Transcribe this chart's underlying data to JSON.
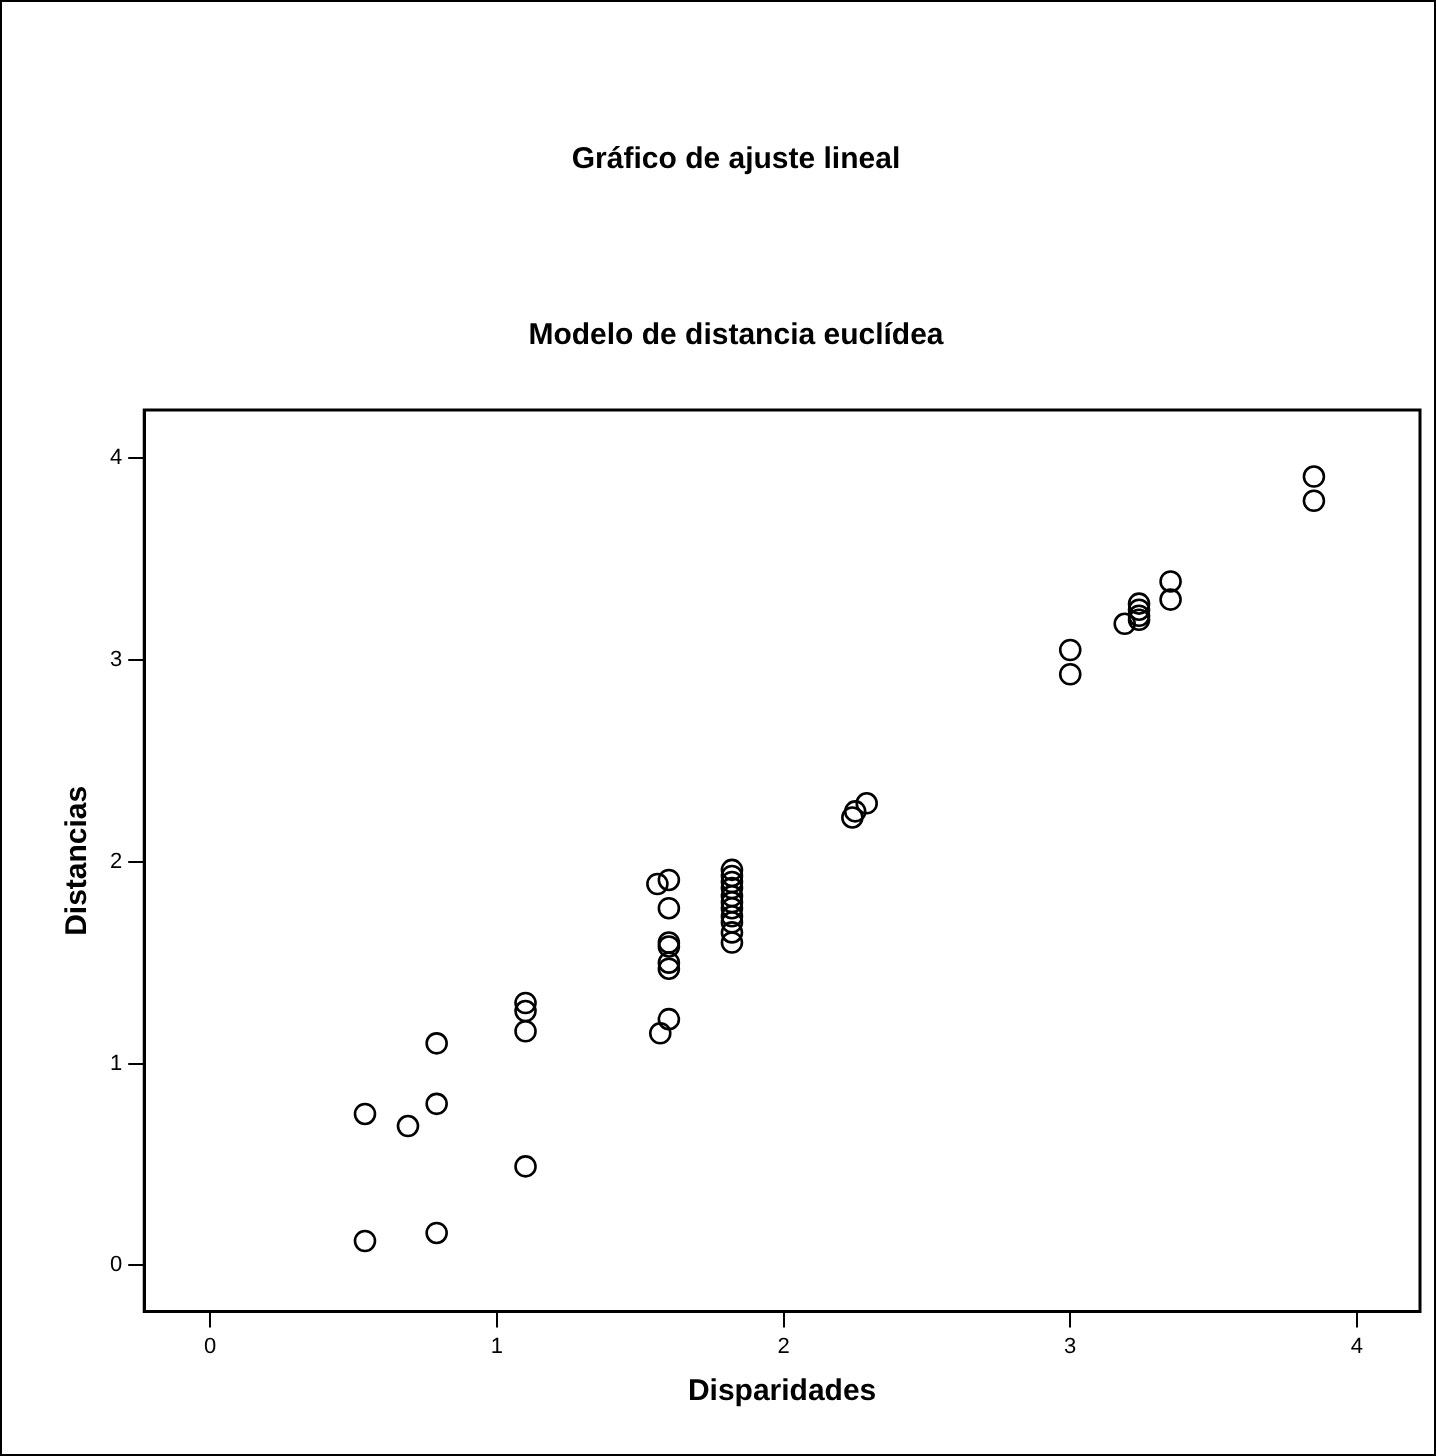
{
  "chart_data": {
    "type": "scatter",
    "title": "Gráfico de ajuste lineal",
    "subtitle": "Modelo de distancia euclídea",
    "xlabel": "Disparidades",
    "ylabel": "Distancias",
    "series": [
      {
        "color": "#000000",
        "x": [
          0.54,
          0.54,
          0.69,
          0.79,
          0.79,
          0.79,
          1.1,
          1.1,
          1.1,
          1.1,
          1.56,
          1.6,
          1.6,
          1.6,
          1.6,
          1.6,
          1.6,
          1.6,
          1.57,
          1.82,
          1.82,
          1.82,
          1.82,
          1.82,
          1.82,
          1.82,
          1.82,
          1.82,
          1.82,
          1.82,
          2.24,
          2.25,
          2.29,
          3.0,
          3.0,
          3.19,
          3.24,
          3.24,
          3.24,
          3.24,
          3.35,
          3.35,
          3.85,
          3.85
        ],
        "values": [
          0.75,
          0.12,
          0.69,
          1.1,
          0.8,
          0.16,
          1.3,
          1.26,
          1.16,
          0.49,
          1.89,
          1.91,
          1.77,
          1.6,
          1.58,
          1.5,
          1.47,
          1.22,
          1.15,
          1.96,
          1.93,
          1.9,
          1.87,
          1.83,
          1.8,
          1.77,
          1.73,
          1.7,
          1.65,
          1.6,
          2.22,
          2.25,
          2.29,
          3.05,
          2.93,
          3.18,
          3.28,
          3.25,
          3.22,
          3.2,
          3.39,
          3.3,
          3.91,
          3.79
        ]
      }
    ],
    "xlim": [
      -0.23,
      4.22
    ],
    "xticks": [
      0,
      1,
      2,
      3,
      4
    ],
    "ylim": [
      -0.23,
      4.24
    ],
    "yticks": [
      0,
      1,
      2,
      3,
      4
    ],
    "grid": false,
    "legend": false,
    "marker": "circle"
  }
}
